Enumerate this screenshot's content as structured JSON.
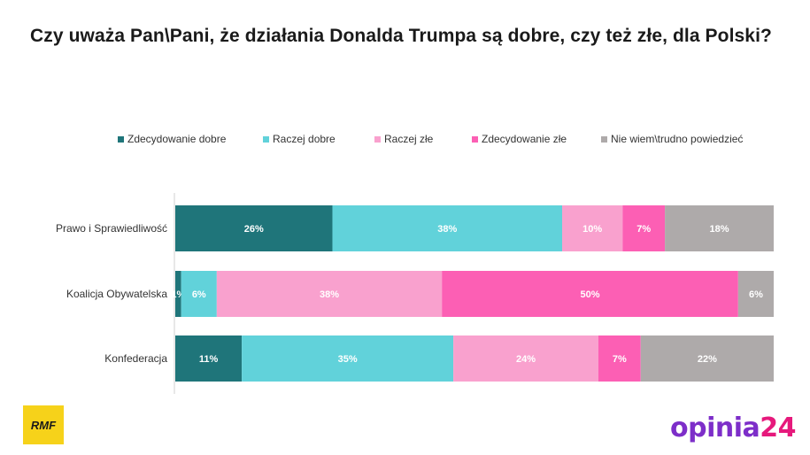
{
  "title": "Czy uważa Pan\\Pani, że działania Donalda Trumpa są dobre, czy też złe, dla Polski?",
  "logos": {
    "left": "RMF",
    "right_word": "opinia",
    "right_number": "24"
  },
  "chart_data": {
    "type": "bar",
    "orientation": "horizontal",
    "stacked": true,
    "categories": [
      "Prawo i Sprawiedliwość",
      "Koalicja Obywatelska",
      "Konfederacja"
    ],
    "series": [
      {
        "name": "Zdecydowanie dobre",
        "color": "#1f757a",
        "values": [
          26,
          1,
          11
        ],
        "labels": [
          "26%",
          "1%",
          "11%"
        ]
      },
      {
        "name": "Raczej dobre",
        "color": "#61d2da",
        "values": [
          38,
          6,
          35
        ],
        "labels": [
          "38%",
          "6%",
          "35%"
        ]
      },
      {
        "name": "Raczej złe",
        "color": "#f9a1ce",
        "values": [
          10,
          38,
          24
        ],
        "labels": [
          "10%",
          "38%",
          "24%"
        ]
      },
      {
        "name": "Zdecydowanie złe",
        "color": "#fc5fb4",
        "values": [
          7,
          50,
          7
        ],
        "labels": [
          "7%",
          "50%",
          "7%"
        ]
      },
      {
        "name": "Nie wiem\\trudno powiedzieć",
        "color": "#aeaaaa",
        "values": [
          18,
          6,
          22
        ],
        "labels": [
          "18%",
          "6%",
          "22%"
        ]
      }
    ],
    "legend": "top",
    "grid": false
  }
}
